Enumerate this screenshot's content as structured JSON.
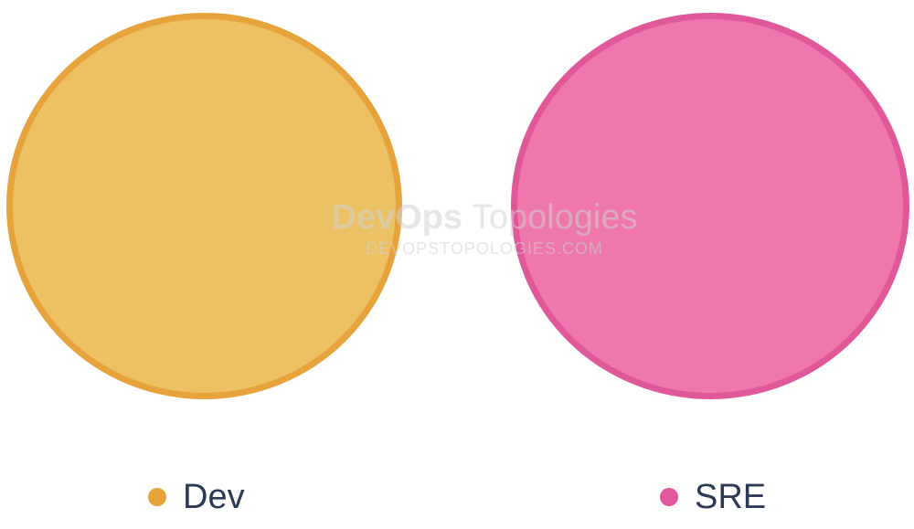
{
  "watermark": {
    "brand_bold": "DevOps",
    "brand_light": "Topologies",
    "url": "DEVOPSTOPOLOGIES.COM"
  },
  "nodes": [
    {
      "id": "dev",
      "label": "Dev",
      "fill": "#ebc163",
      "stroke": "#e6a33b"
    },
    {
      "id": "sre",
      "label": "SRE",
      "fill": "#ee77ad",
      "stroke": "#e0579a"
    }
  ],
  "legend": {
    "dev": {
      "label": "Dev",
      "color": "#e6a33b"
    },
    "sre": {
      "label": "SRE",
      "color": "#e0579a"
    }
  }
}
